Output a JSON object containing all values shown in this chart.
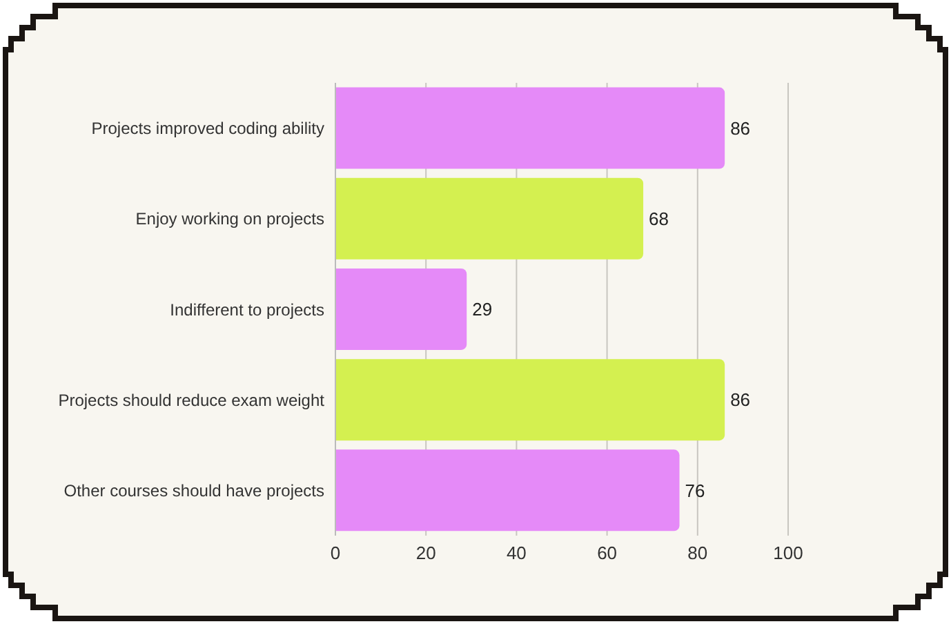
{
  "chart_data": {
    "type": "bar",
    "orientation": "horizontal",
    "categories": [
      "Projects improved coding ability",
      "Enjoy working on projects",
      "Indifferent to projects",
      "Projects should reduce exam weight",
      "Other courses should have projects"
    ],
    "values": [
      86,
      68,
      29,
      86,
      76
    ],
    "colors": [
      "#e58af8",
      "#d4f050",
      "#e58af8",
      "#d4f050",
      "#e58af8"
    ],
    "xlim": [
      0,
      100
    ],
    "xticks": [
      0,
      20,
      40,
      60,
      80,
      100
    ],
    "grid": "x",
    "data_labels": true
  }
}
